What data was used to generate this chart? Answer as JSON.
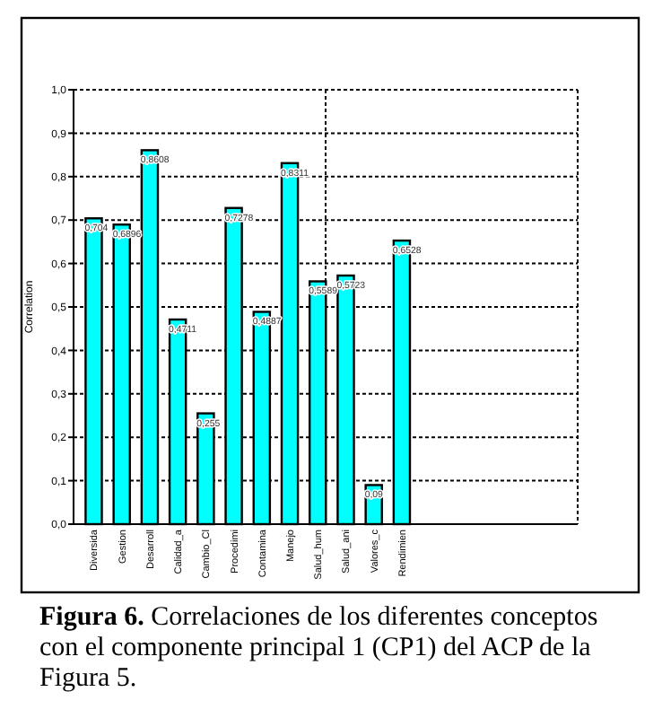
{
  "chart_data": {
    "type": "bar",
    "ylabel": "Correlation",
    "categories": [
      "Diversida",
      "Gestion",
      "Desarroll",
      "Calidad_a",
      "Cambio_Cl",
      "Procedimi",
      "Contamina",
      "Manejo",
      "Salud_hum",
      "Salud_ani",
      "Valores_c",
      "Rendimien"
    ],
    "values": [
      0.704,
      0.6896,
      0.8608,
      0.4711,
      0.255,
      0.7278,
      0.4887,
      0.8311,
      0.5589,
      0.5723,
      0.09,
      0.6528
    ],
    "value_labels": [
      "0,704",
      "0,6896",
      "0,8608",
      "0,4711",
      "0,255",
      "0,7278",
      "0,4887",
      "0,8311",
      "0,5589",
      "0,5723",
      "0,09",
      "0,6528"
    ],
    "color": "#00ffff",
    "ylim": [
      0,
      1
    ],
    "yticks": [
      {
        "value": 0,
        "label": "0,0"
      },
      {
        "value": 0.1,
        "label": "0,1"
      },
      {
        "value": 0.2,
        "label": "0,2"
      },
      {
        "value": 0.3,
        "label": "0,3"
      },
      {
        "value": 0.4,
        "label": "0,4"
      },
      {
        "value": 0.5,
        "label": "0,5"
      },
      {
        "value": 0.6,
        "label": "0,6"
      },
      {
        "value": 0.7,
        "label": "0,7"
      },
      {
        "value": 0.8,
        "label": "0,8"
      },
      {
        "value": 0.9,
        "label": "0,9"
      },
      {
        "value": 1,
        "label": "1,0"
      }
    ],
    "grid": "y",
    "annotations": [
      "Figura 6. Correlaciones de los diferentes conceptos con el componente principal 1 (CP1) del ACP de la Figura 5."
    ]
  }
}
